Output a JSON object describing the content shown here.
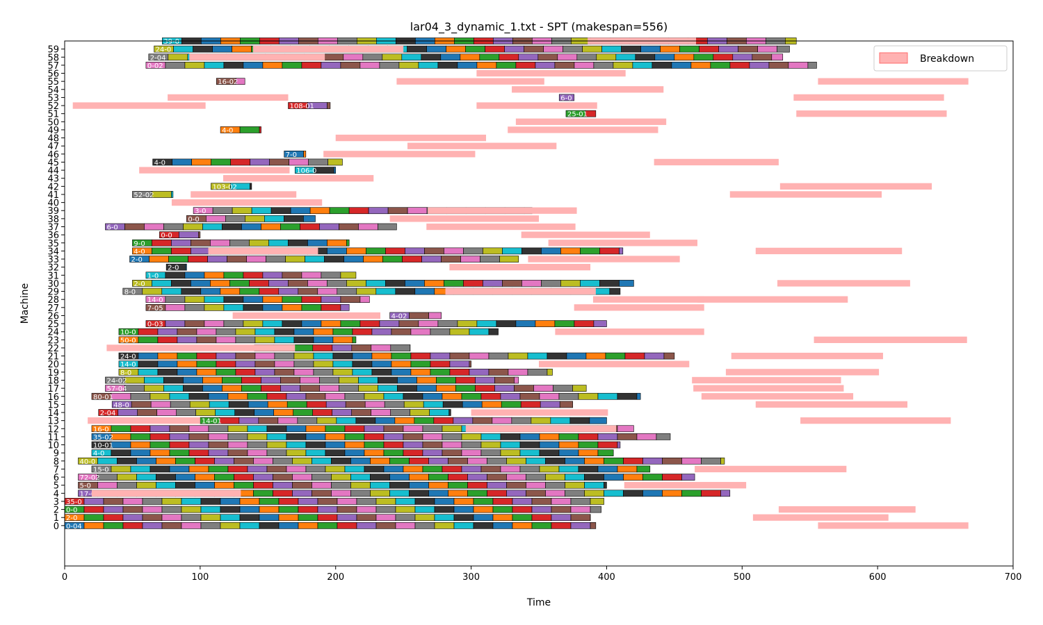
{
  "chart_data": {
    "type": "gantt",
    "title": "lar04_3_dynamic_1.txt - SPT (makespan=556)",
    "xlabel": "Time",
    "ylabel": "Machine",
    "xlim": [
      0,
      700
    ],
    "ylim": [
      -5,
      60
    ],
    "x_ticks": [
      0,
      100,
      200,
      300,
      400,
      500,
      600,
      700
    ],
    "y_ticks": [
      0,
      1,
      2,
      3,
      4,
      5,
      6,
      7,
      8,
      9,
      10,
      11,
      12,
      13,
      14,
      15,
      16,
      17,
      18,
      19,
      20,
      21,
      22,
      23,
      24,
      25,
      26,
      27,
      28,
      29,
      30,
      31,
      32,
      33,
      34,
      35,
      36,
      37,
      38,
      39,
      40,
      41,
      42,
      43,
      44,
      45,
      46,
      47,
      48,
      49,
      50,
      51,
      52,
      53,
      54,
      55,
      56,
      57,
      58,
      59
    ],
    "legend": {
      "label": "Breakdown",
      "color": "#ffb2b2",
      "edge": "#ff6b6b",
      "position": "top-right"
    },
    "breakdowns": [
      {
        "machine": 0,
        "start": 556,
        "end": 667
      },
      {
        "machine": 1,
        "start": 508,
        "end": 608
      },
      {
        "machine": 2,
        "start": 527,
        "end": 628
      },
      {
        "machine": 4,
        "start": 20,
        "end": 130
      },
      {
        "machine": 5,
        "start": 413,
        "end": 503
      },
      {
        "machine": 7,
        "start": 465,
        "end": 577
      },
      {
        "machine": 12,
        "start": 296,
        "end": 407
      },
      {
        "machine": 13,
        "start": 17,
        "end": 100
      },
      {
        "machine": 13,
        "start": 543,
        "end": 654
      },
      {
        "machine": 14,
        "start": 300,
        "end": 401
      },
      {
        "machine": 15,
        "start": 510,
        "end": 622
      },
      {
        "machine": 16,
        "start": 470,
        "end": 582
      },
      {
        "machine": 17,
        "start": 464,
        "end": 575
      },
      {
        "machine": 18,
        "start": 463,
        "end": 573
      },
      {
        "machine": 19,
        "start": 488,
        "end": 601
      },
      {
        "machine": 20,
        "start": 350,
        "end": 461
      },
      {
        "machine": 21,
        "start": 492,
        "end": 604
      },
      {
        "machine": 22,
        "start": 31,
        "end": 170
      },
      {
        "machine": 23,
        "start": 553,
        "end": 666
      },
      {
        "machine": 24,
        "start": 362,
        "end": 472
      },
      {
        "machine": 26,
        "start": 124,
        "end": 233
      },
      {
        "machine": 27,
        "start": 376,
        "end": 472
      },
      {
        "machine": 28,
        "start": 390,
        "end": 472
      },
      {
        "machine": 28,
        "start": 467,
        "end": 578
      },
      {
        "machine": 29,
        "start": 281,
        "end": 392
      },
      {
        "machine": 30,
        "start": 526,
        "end": 624
      },
      {
        "machine": 32,
        "start": 284,
        "end": 388
      },
      {
        "machine": 33,
        "start": 342,
        "end": 454
      },
      {
        "machine": 34,
        "start": 106,
        "end": 187
      },
      {
        "machine": 34,
        "start": 510,
        "end": 618
      },
      {
        "machine": 35,
        "start": 357,
        "end": 467
      },
      {
        "machine": 36,
        "start": 337,
        "end": 432
      },
      {
        "machine": 37,
        "start": 267,
        "end": 377
      },
      {
        "machine": 38,
        "start": 240,
        "end": 350
      },
      {
        "machine": 39,
        "start": 268,
        "end": 378
      },
      {
        "machine": 40,
        "start": 79,
        "end": 190
      },
      {
        "machine": 41,
        "start": 93,
        "end": 171
      },
      {
        "machine": 41,
        "start": 491,
        "end": 603
      },
      {
        "machine": 42,
        "start": 528,
        "end": 640
      },
      {
        "machine": 43,
        "start": 117,
        "end": 228
      },
      {
        "machine": 44,
        "start": 55,
        "end": 166
      },
      {
        "machine": 45,
        "start": 435,
        "end": 527
      },
      {
        "machine": 46,
        "start": 191,
        "end": 303
      },
      {
        "machine": 47,
        "start": 253,
        "end": 363
      },
      {
        "machine": 48,
        "start": 200,
        "end": 311
      },
      {
        "machine": 49,
        "start": 327,
        "end": 438
      },
      {
        "machine": 50,
        "start": 333,
        "end": 444
      },
      {
        "machine": 51,
        "start": 540,
        "end": 651
      },
      {
        "machine": 52,
        "start": 6,
        "end": 104
      },
      {
        "machine": 52,
        "start": 304,
        "end": 393
      },
      {
        "machine": 53,
        "start": 76,
        "end": 165
      },
      {
        "machine": 53,
        "start": 538,
        "end": 649
      },
      {
        "machine": 54,
        "start": 330,
        "end": 442
      },
      {
        "machine": 55,
        "start": 245,
        "end": 354
      },
      {
        "machine": 55,
        "start": 556,
        "end": 667
      },
      {
        "machine": 56,
        "start": 304,
        "end": 414
      },
      {
        "machine": 58,
        "start": 92,
        "end": 192
      },
      {
        "machine": 59,
        "start": 139,
        "end": 250
      },
      {
        "machine": 60,
        "start": 386,
        "end": 466
      }
    ],
    "operation_labels": [
      {
        "machine": 0,
        "start": 0,
        "end": 392,
        "label": "0-04"
      },
      {
        "machine": 1,
        "start": 0,
        "end": 388,
        "label": "2-0"
      },
      {
        "machine": 2,
        "start": 0,
        "end": 396,
        "label": "0-0"
      },
      {
        "machine": 3,
        "start": 0,
        "end": 398,
        "label": "35-0"
      },
      {
        "machine": 4,
        "start": 10,
        "end": 491,
        "label": "17-03"
      },
      {
        "machine": 5,
        "start": 10,
        "end": 400,
        "label": "5-0"
      },
      {
        "machine": 6,
        "start": 10,
        "end": 465,
        "label": "72-02"
      },
      {
        "machine": 7,
        "start": 20,
        "end": 432,
        "label": "15-0"
      },
      {
        "machine": 8,
        "start": 10,
        "end": 487,
        "label": "40-0"
      },
      {
        "machine": 9,
        "start": 20,
        "end": 405,
        "label": "4-0"
      },
      {
        "machine": 10,
        "start": 20,
        "end": 410,
        "label": "10-01"
      },
      {
        "machine": 11,
        "start": 20,
        "end": 447,
        "label": "35-02"
      },
      {
        "machine": 12,
        "start": 20,
        "end": 420,
        "label": "16-0"
      },
      {
        "machine": 13,
        "start": 100,
        "end": 400,
        "label": "14-01"
      },
      {
        "machine": 14,
        "start": 25,
        "end": 285,
        "label": "2-04"
      },
      {
        "machine": 15,
        "start": 35,
        "end": 375,
        "label": "48-0"
      },
      {
        "machine": 16,
        "start": 20,
        "end": 425,
        "label": "80-01"
      },
      {
        "machine": 17,
        "start": 30,
        "end": 385,
        "label": "57-04"
      },
      {
        "machine": 18,
        "start": 30,
        "end": 335,
        "label": "24-02"
      },
      {
        "machine": 19,
        "start": 40,
        "end": 360,
        "label": "8-0"
      },
      {
        "machine": 20,
        "start": 40,
        "end": 300,
        "label": "14-0"
      },
      {
        "machine": 21,
        "start": 40,
        "end": 450,
        "label": "24-0"
      },
      {
        "machine": 22,
        "start": 140,
        "end": 255,
        "label": "74-0"
      },
      {
        "machine": 23,
        "start": 40,
        "end": 215,
        "label": "50-0"
      },
      {
        "machine": 24,
        "start": 40,
        "end": 320,
        "label": "10-0"
      },
      {
        "machine": 25,
        "start": 60,
        "end": 400,
        "label": "0-03"
      },
      {
        "machine": 26,
        "start": 240,
        "end": 278,
        "label": "4-02"
      },
      {
        "machine": 27,
        "start": 60,
        "end": 210,
        "label": "7-05"
      },
      {
        "machine": 28,
        "start": 60,
        "end": 225,
        "label": "14-0"
      },
      {
        "machine": 29,
        "start": 43,
        "end": 410,
        "label": "8-0"
      },
      {
        "machine": 30,
        "start": 50,
        "end": 420,
        "label": "2-0"
      },
      {
        "machine": 31,
        "start": 60,
        "end": 215,
        "label": "1-0"
      },
      {
        "machine": 32,
        "start": 75,
        "end": 90,
        "label": "2-0"
      },
      {
        "machine": 33,
        "start": 48,
        "end": 335,
        "label": "2-0"
      },
      {
        "machine": 34,
        "start": 50,
        "end": 412,
        "label": "4-0"
      },
      {
        "machine": 35,
        "start": 50,
        "end": 210,
        "label": "9-0"
      },
      {
        "machine": 36,
        "start": 70,
        "end": 100,
        "label": "0-0"
      },
      {
        "machine": 37,
        "start": 30,
        "end": 245,
        "label": "6-0"
      },
      {
        "machine": 38,
        "start": 90,
        "end": 185,
        "label": "0-0"
      },
      {
        "machine": 39,
        "start": 95,
        "end": 345,
        "label": "3-0"
      },
      {
        "machine": 41,
        "start": 50,
        "end": 80,
        "label": "52-02"
      },
      {
        "machine": 42,
        "start": 108,
        "end": 138,
        "label": "103-02"
      },
      {
        "machine": 44,
        "start": 170,
        "end": 200,
        "label": "106-0"
      },
      {
        "machine": 45,
        "start": 65,
        "end": 205,
        "label": "4-0"
      },
      {
        "machine": 46,
        "start": 162,
        "end": 178,
        "label": "7-0"
      },
      {
        "machine": 49,
        "start": 115,
        "end": 145,
        "label": "4-0"
      },
      {
        "machine": 51,
        "start": 370,
        "end": 392,
        "label": "25-01"
      },
      {
        "machine": 52,
        "start": 165,
        "end": 196,
        "label": "108-01"
      },
      {
        "machine": 53,
        "start": 365,
        "end": 376,
        "label": "6-0"
      },
      {
        "machine": 55,
        "start": 112,
        "end": 133,
        "label": "16-02"
      },
      {
        "machine": 57,
        "start": 60,
        "end": 555,
        "label": "0-02"
      },
      {
        "machine": 58,
        "start": 62,
        "end": 530,
        "label": "2-04"
      },
      {
        "machine": 59,
        "start": 66,
        "end": 535,
        "label": "24-0"
      },
      {
        "machine": 60,
        "start": 72,
        "end": 540,
        "label": "39-0"
      }
    ]
  }
}
